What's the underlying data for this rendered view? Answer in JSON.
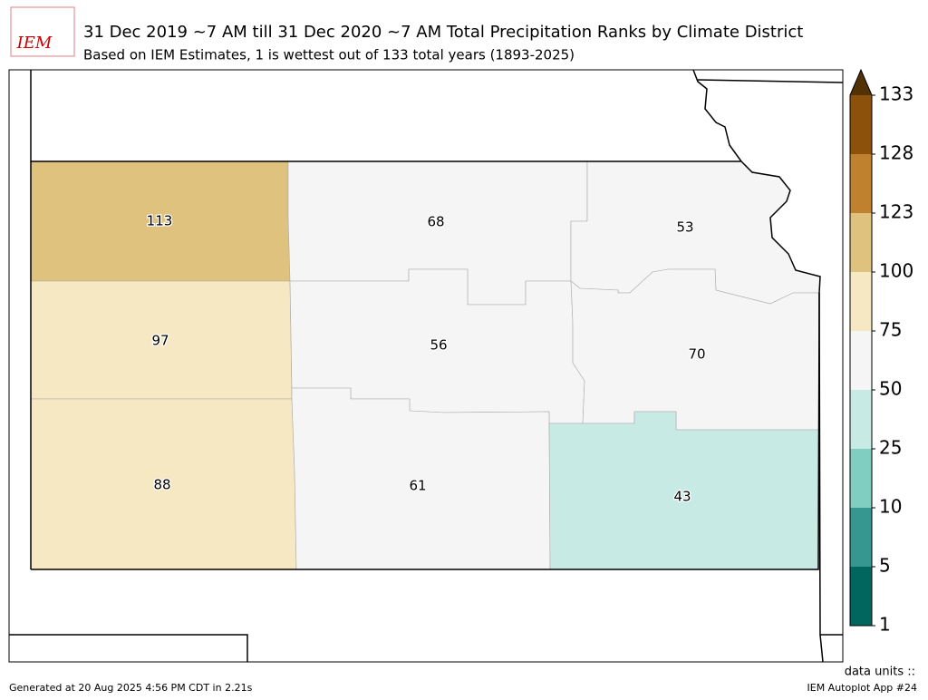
{
  "header": {
    "logo": "IEM",
    "title": "31 Dec 2019 ~7 AM till 31 Dec 2020 ~7 AM Total Precipitation Ranks by Climate District",
    "subtitle": "Based on IEM Estimates, 1 is wettest out of 133 total years (1893-2025)"
  },
  "districts": [
    {
      "id": "nw",
      "value": 113
    },
    {
      "id": "nc",
      "value": 68
    },
    {
      "id": "ne",
      "value": 53
    },
    {
      "id": "wc",
      "value": 97
    },
    {
      "id": "c",
      "value": 56
    },
    {
      "id": "ec",
      "value": 70
    },
    {
      "id": "sw",
      "value": 88
    },
    {
      "id": "sc",
      "value": 61
    },
    {
      "id": "se",
      "value": 43
    }
  ],
  "colorbar": {
    "ticks": [
      1,
      5,
      10,
      25,
      50,
      75,
      100,
      123,
      128,
      133
    ],
    "colors": [
      "#01665e",
      "#35978f",
      "#80cdc1",
      "#c7eae5",
      "#f5f5f5",
      "#f6e8c3",
      "#dfc27d",
      "#bf812d",
      "#8c510a"
    ],
    "over_color": "#543005",
    "units": "data units ::"
  },
  "footer": {
    "generated": "Generated at 20 Aug 2025 4:56 PM CDT in 2.21s",
    "app": "IEM Autoplot App #24"
  }
}
